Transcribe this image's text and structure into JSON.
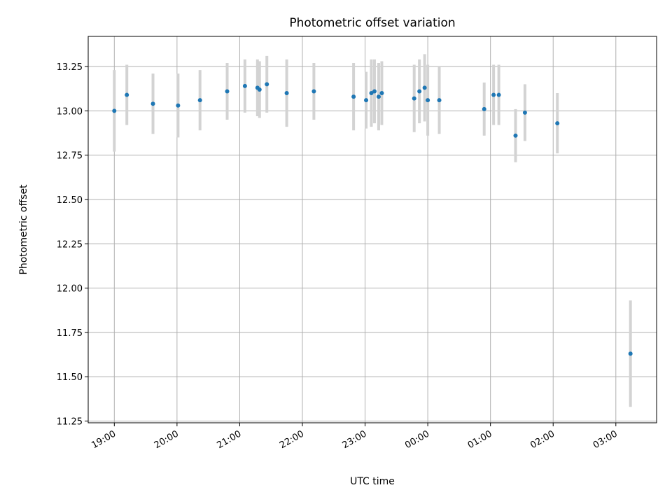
{
  "chart_data": {
    "type": "scatter",
    "title": "Photometric offset variation",
    "xlabel": "UTC time",
    "ylabel": "Photometric offset",
    "x_axis": {
      "kind": "time",
      "range": [
        "18:35",
        "03:39"
      ],
      "ticks": [
        "19:00",
        "20:00",
        "21:00",
        "22:00",
        "23:00",
        "00:00",
        "01:00",
        "02:00",
        "03:00"
      ]
    },
    "y_axis": {
      "range": [
        11.24,
        13.42
      ],
      "ticks": [
        "11.25",
        "11.50",
        "11.75",
        "12.00",
        "12.25",
        "12.50",
        "12.75",
        "13.00",
        "13.25"
      ]
    },
    "grid": true,
    "series": [
      {
        "marker_color": "#1f77b4",
        "errorbar_color": "#d3d3d3",
        "points": [
          {
            "x": "19:00",
            "y": 13.0,
            "err": 0.23
          },
          {
            "x": "19:12",
            "y": 13.09,
            "err": 0.17
          },
          {
            "x": "19:37",
            "y": 13.04,
            "err": 0.17
          },
          {
            "x": "20:01",
            "y": 13.03,
            "err": 0.18
          },
          {
            "x": "20:22",
            "y": 13.06,
            "err": 0.17
          },
          {
            "x": "20:48",
            "y": 13.11,
            "err": 0.16
          },
          {
            "x": "21:05",
            "y": 13.14,
            "err": 0.15
          },
          {
            "x": "21:17",
            "y": 13.13,
            "err": 0.16
          },
          {
            "x": "21:19",
            "y": 13.12,
            "err": 0.16
          },
          {
            "x": "21:26",
            "y": 13.15,
            "err": 0.16
          },
          {
            "x": "21:45",
            "y": 13.1,
            "err": 0.19
          },
          {
            "x": "22:11",
            "y": 13.11,
            "err": 0.16
          },
          {
            "x": "22:49",
            "y": 13.08,
            "err": 0.19
          },
          {
            "x": "23:01",
            "y": 13.06,
            "err": 0.16
          },
          {
            "x": "23:06",
            "y": 13.1,
            "err": 0.19
          },
          {
            "x": "23:09",
            "y": 13.11,
            "err": 0.18
          },
          {
            "x": "23:13",
            "y": 13.08,
            "err": 0.19
          },
          {
            "x": "23:16",
            "y": 13.1,
            "err": 0.18
          },
          {
            "x": "23:47",
            "y": 13.07,
            "err": 0.19
          },
          {
            "x": "23:52",
            "y": 13.11,
            "err": 0.18
          },
          {
            "x": "23:57",
            "y": 13.13,
            "err": 0.19
          },
          {
            "x": "00:00",
            "y": 13.06,
            "err": 0.2
          },
          {
            "x": "00:11",
            "y": 13.06,
            "err": 0.19
          },
          {
            "x": "00:54",
            "y": 13.01,
            "err": 0.15
          },
          {
            "x": "01:03",
            "y": 13.09,
            "err": 0.17
          },
          {
            "x": "01:08",
            "y": 13.09,
            "err": 0.17
          },
          {
            "x": "01:24",
            "y": 12.86,
            "err": 0.15
          },
          {
            "x": "01:33",
            "y": 12.99,
            "err": 0.16
          },
          {
            "x": "02:04",
            "y": 12.93,
            "err": 0.17
          },
          {
            "x": "03:14",
            "y": 11.63,
            "err": 0.3
          }
        ]
      }
    ]
  }
}
